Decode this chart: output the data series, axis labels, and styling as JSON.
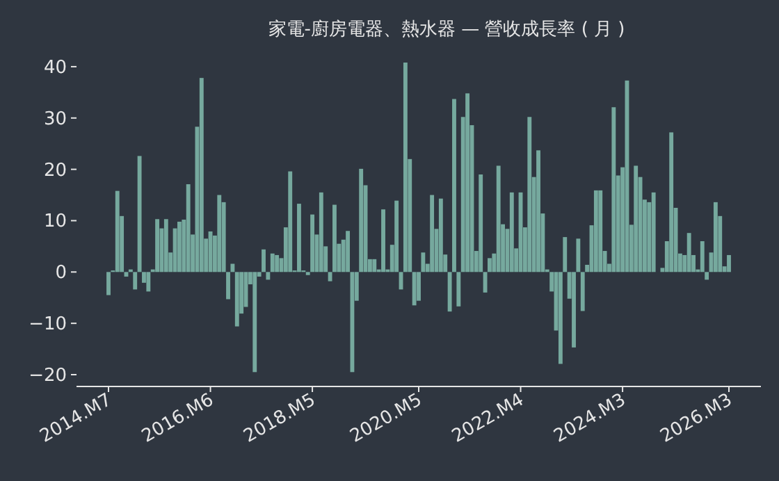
{
  "chart_data": {
    "type": "bar",
    "title": "家電-廚房電器、熱水器 — 營收成長率 ( 月 )",
    "categories": [
      "2014.M7",
      null,
      null,
      null,
      null,
      null,
      null,
      null,
      null,
      null,
      null,
      null,
      null,
      null,
      null,
      null,
      null,
      null,
      null,
      null,
      null,
      null,
      null,
      "2016.M6",
      null,
      null,
      null,
      null,
      null,
      null,
      null,
      null,
      null,
      null,
      null,
      null,
      null,
      null,
      null,
      null,
      null,
      null,
      null,
      null,
      null,
      null,
      "2018.M5",
      null,
      null,
      null,
      null,
      null,
      null,
      null,
      null,
      null,
      null,
      null,
      null,
      null,
      null,
      null,
      null,
      null,
      null,
      null,
      null,
      null,
      null,
      null,
      "2020.M5",
      null,
      null,
      null,
      null,
      null,
      null,
      null,
      null,
      null,
      null,
      null,
      null,
      null,
      null,
      null,
      null,
      null,
      null,
      null,
      null,
      null,
      null,
      "2022.M4",
      null,
      null,
      null,
      null,
      null,
      null,
      null,
      null,
      null,
      null,
      null,
      null,
      null,
      null,
      null,
      null,
      null,
      null,
      null,
      null,
      null,
      null,
      "2024.M3",
      null,
      null,
      null,
      null,
      null,
      null,
      null,
      null,
      null,
      null,
      null,
      null,
      null,
      null,
      null,
      null,
      null,
      null,
      null,
      null,
      null,
      null,
      null,
      "2026.M3"
    ],
    "values": [
      -4.5,
      0.3,
      15.8,
      10.9,
      -0.9,
      0.5,
      -3.4,
      22.6,
      -2.1,
      -3.8,
      0.5,
      10.3,
      8.5,
      10.3,
      3.8,
      8.5,
      9.8,
      10.2,
      17.1,
      7.3,
      28.3,
      37.8,
      6.5,
      7.9,
      7.1,
      15.0,
      13.6,
      -5.3,
      1.6,
      -10.6,
      -8.1,
      -6.8,
      -2.4,
      -19.5,
      -0.9,
      4.4,
      -1.5,
      3.6,
      3.3,
      2.7,
      8.7,
      19.6,
      0.3,
      13.3,
      0.3,
      -0.6,
      11.2,
      7.3,
      15.5,
      5.0,
      -1.8,
      13.1,
      5.5,
      6.3,
      8.0,
      -19.5,
      -5.6,
      20.1,
      16.9,
      2.5,
      2.5,
      0.5,
      12.2,
      0.5,
      5.3,
      13.9,
      -3.4,
      40.8,
      22.0,
      -6.5,
      -5.6,
      3.8,
      1.6,
      15.0,
      8.4,
      14.3,
      3.4,
      -7.7,
      33.7,
      -6.7,
      30.2,
      34.8,
      28.6,
      4.1,
      19.0,
      -4.0,
      2.7,
      3.6,
      20.7,
      9.3,
      8.4,
      15.5,
      4.6,
      15.5,
      8.7,
      30.2,
      18.5,
      23.7,
      11.4,
      0.5,
      -3.8,
      -11.4,
      -17.9,
      6.8,
      -5.2,
      -14.7,
      6.5,
      -7.6,
      1.4,
      9.1,
      15.9,
      15.9,
      4.1,
      1.6,
      32.1,
      18.8,
      20.4,
      37.3,
      9.2,
      20.7,
      18.5,
      14.1,
      13.6,
      15.5,
      null,
      0.8,
      6.0,
      27.2,
      12.5,
      3.6,
      3.3,
      7.6,
      3.3,
      0.5,
      6.0,
      -1.5,
      3.8,
      13.6,
      10.9,
      1.1,
      3.3
    ],
    "color": "#76a99e",
    "ylim": [
      -22.3,
      40.8
    ],
    "yticks": [
      {
        "value": -20,
        "label": "−20"
      },
      {
        "value": -10,
        "label": "−10"
      },
      0,
      10,
      20,
      30,
      40
    ],
    "grid": false
  }
}
